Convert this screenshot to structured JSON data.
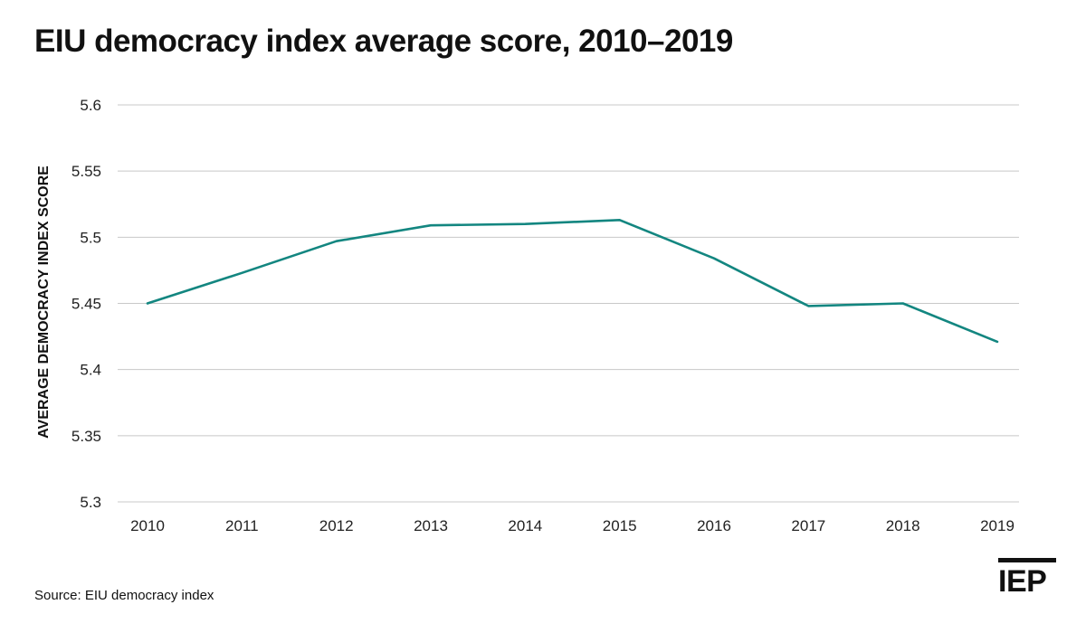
{
  "title": "EIU democracy index average score, 2010–2019",
  "source": "Source: EIU democracy index",
  "logo": {
    "text": "IEP"
  },
  "colors": {
    "line": "#138680",
    "grid": "#c8c8c8",
    "text": "#111111"
  },
  "chart_data": {
    "type": "line",
    "title": "EIU democracy index average score, 2010–2019",
    "xlabel": "",
    "ylabel": "AVERAGE DEMOCRACY INDEX SCORE",
    "categories": [
      "2010",
      "2011",
      "2012",
      "2013",
      "2014",
      "2015",
      "2016",
      "2017",
      "2018",
      "2019"
    ],
    "series": [
      {
        "values": [
          5.45,
          5.473,
          5.497,
          5.509,
          5.51,
          5.513,
          5.484,
          5.448,
          5.45,
          5.421
        ]
      }
    ],
    "ylim": [
      5.3,
      5.6
    ],
    "yticks": [
      "5.3",
      "5.35",
      "5.4",
      "5.45",
      "5.5",
      "5.55",
      "5.6"
    ],
    "grid": true,
    "legend": "none"
  }
}
